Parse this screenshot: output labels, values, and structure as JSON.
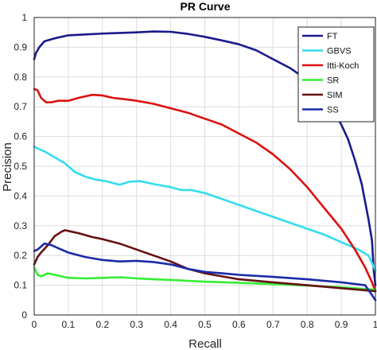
{
  "chart_data": {
    "type": "line",
    "title": "PR Curve",
    "xlabel": "Recall",
    "ylabel": "Precision",
    "xlim": [
      0,
      1
    ],
    "ylim": [
      0,
      1
    ],
    "xticks": [
      "0",
      "0.1",
      "0.2",
      "0.3",
      "0.4",
      "0.5",
      "0.6",
      "0.7",
      "0.8",
      "0.9",
      "1"
    ],
    "yticks": [
      "0",
      "0.1",
      "0.2",
      "0.3",
      "0.4",
      "0.5",
      "0.6",
      "0.7",
      "0.8",
      "0.9",
      "1"
    ],
    "grid": true,
    "legend_position": "top-right",
    "series": [
      {
        "name": "FT",
        "color": "#1a1a8c",
        "points": [
          [
            0,
            0.86
          ],
          [
            0.005,
            0.88
          ],
          [
            0.015,
            0.9
          ],
          [
            0.03,
            0.92
          ],
          [
            0.06,
            0.93
          ],
          [
            0.1,
            0.94
          ],
          [
            0.15,
            0.943
          ],
          [
            0.2,
            0.946
          ],
          [
            0.25,
            0.948
          ],
          [
            0.3,
            0.95
          ],
          [
            0.35,
            0.953
          ],
          [
            0.4,
            0.952
          ],
          [
            0.45,
            0.945
          ],
          [
            0.5,
            0.935
          ],
          [
            0.55,
            0.923
          ],
          [
            0.6,
            0.91
          ],
          [
            0.65,
            0.89
          ],
          [
            0.7,
            0.86
          ],
          [
            0.75,
            0.83
          ],
          [
            0.8,
            0.79
          ],
          [
            0.85,
            0.73
          ],
          [
            0.88,
            0.68
          ],
          [
            0.9,
            0.64
          ],
          [
            0.92,
            0.59
          ],
          [
            0.94,
            0.52
          ],
          [
            0.96,
            0.44
          ],
          [
            0.97,
            0.38
          ],
          [
            0.98,
            0.32
          ],
          [
            0.99,
            0.25
          ],
          [
            0.995,
            0.15
          ],
          [
            1,
            0.1
          ]
        ]
      },
      {
        "name": "GBVS",
        "color": "#33ddee",
        "points": [
          [
            0,
            0.565
          ],
          [
            0.03,
            0.55
          ],
          [
            0.06,
            0.53
          ],
          [
            0.09,
            0.51
          ],
          [
            0.12,
            0.48
          ],
          [
            0.15,
            0.465
          ],
          [
            0.18,
            0.455
          ],
          [
            0.21,
            0.45
          ],
          [
            0.25,
            0.438
          ],
          [
            0.28,
            0.448
          ],
          [
            0.31,
            0.45
          ],
          [
            0.35,
            0.44
          ],
          [
            0.4,
            0.43
          ],
          [
            0.43,
            0.42
          ],
          [
            0.46,
            0.42
          ],
          [
            0.5,
            0.41
          ],
          [
            0.55,
            0.39
          ],
          [
            0.6,
            0.37
          ],
          [
            0.65,
            0.35
          ],
          [
            0.7,
            0.33
          ],
          [
            0.75,
            0.31
          ],
          [
            0.8,
            0.29
          ],
          [
            0.85,
            0.27
          ],
          [
            0.9,
            0.245
          ],
          [
            0.95,
            0.22
          ],
          [
            0.98,
            0.2
          ],
          [
            1,
            0.15
          ]
        ]
      },
      {
        "name": "Itti-Koch",
        "color": "#dd1111",
        "points": [
          [
            0,
            0.76
          ],
          [
            0.01,
            0.755
          ],
          [
            0.02,
            0.73
          ],
          [
            0.035,
            0.715
          ],
          [
            0.05,
            0.715
          ],
          [
            0.07,
            0.72
          ],
          [
            0.1,
            0.72
          ],
          [
            0.13,
            0.73
          ],
          [
            0.17,
            0.74
          ],
          [
            0.2,
            0.738
          ],
          [
            0.23,
            0.73
          ],
          [
            0.27,
            0.725
          ],
          [
            0.3,
            0.72
          ],
          [
            0.35,
            0.71
          ],
          [
            0.4,
            0.695
          ],
          [
            0.45,
            0.68
          ],
          [
            0.5,
            0.66
          ],
          [
            0.55,
            0.64
          ],
          [
            0.6,
            0.61
          ],
          [
            0.65,
            0.58
          ],
          [
            0.7,
            0.54
          ],
          [
            0.75,
            0.49
          ],
          [
            0.8,
            0.43
          ],
          [
            0.85,
            0.36
          ],
          [
            0.9,
            0.29
          ],
          [
            0.94,
            0.22
          ],
          [
            0.97,
            0.16
          ],
          [
            0.99,
            0.11
          ],
          [
            1,
            0.08
          ]
        ]
      },
      {
        "name": "SR",
        "color": "#33ee33",
        "points": [
          [
            0,
            0.16
          ],
          [
            0.01,
            0.135
          ],
          [
            0.02,
            0.13
          ],
          [
            0.04,
            0.14
          ],
          [
            0.06,
            0.135
          ],
          [
            0.08,
            0.13
          ],
          [
            0.1,
            0.125
          ],
          [
            0.15,
            0.123
          ],
          [
            0.2,
            0.125
          ],
          [
            0.25,
            0.127
          ],
          [
            0.3,
            0.123
          ],
          [
            0.35,
            0.12
          ],
          [
            0.4,
            0.118
          ],
          [
            0.45,
            0.115
          ],
          [
            0.5,
            0.112
          ],
          [
            0.6,
            0.108
          ],
          [
            0.7,
            0.104
          ],
          [
            0.8,
            0.099
          ],
          [
            0.9,
            0.093
          ],
          [
            1,
            0.085
          ]
        ]
      },
      {
        "name": "SIM",
        "color": "#661111",
        "points": [
          [
            0,
            0.17
          ],
          [
            0.01,
            0.195
          ],
          [
            0.02,
            0.21
          ],
          [
            0.04,
            0.235
          ],
          [
            0.06,
            0.265
          ],
          [
            0.08,
            0.28
          ],
          [
            0.09,
            0.285
          ],
          [
            0.11,
            0.28
          ],
          [
            0.13,
            0.275
          ],
          [
            0.17,
            0.262
          ],
          [
            0.2,
            0.255
          ],
          [
            0.25,
            0.24
          ],
          [
            0.3,
            0.22
          ],
          [
            0.35,
            0.2
          ],
          [
            0.4,
            0.18
          ],
          [
            0.45,
            0.155
          ],
          [
            0.5,
            0.14
          ],
          [
            0.55,
            0.13
          ],
          [
            0.6,
            0.12
          ],
          [
            0.7,
            0.11
          ],
          [
            0.8,
            0.1
          ],
          [
            0.9,
            0.09
          ],
          [
            1,
            0.08
          ]
        ]
      },
      {
        "name": "SS",
        "color": "#1a2aa8",
        "points": [
          [
            0,
            0.215
          ],
          [
            0.01,
            0.22
          ],
          [
            0.02,
            0.23
          ],
          [
            0.03,
            0.24
          ],
          [
            0.05,
            0.235
          ],
          [
            0.07,
            0.225
          ],
          [
            0.1,
            0.21
          ],
          [
            0.15,
            0.195
          ],
          [
            0.2,
            0.185
          ],
          [
            0.25,
            0.18
          ],
          [
            0.3,
            0.182
          ],
          [
            0.35,
            0.178
          ],
          [
            0.4,
            0.17
          ],
          [
            0.45,
            0.155
          ],
          [
            0.5,
            0.145
          ],
          [
            0.55,
            0.14
          ],
          [
            0.6,
            0.135
          ],
          [
            0.7,
            0.128
          ],
          [
            0.8,
            0.12
          ],
          [
            0.9,
            0.11
          ],
          [
            0.97,
            0.1
          ],
          [
            1,
            0.05
          ]
        ]
      }
    ]
  }
}
